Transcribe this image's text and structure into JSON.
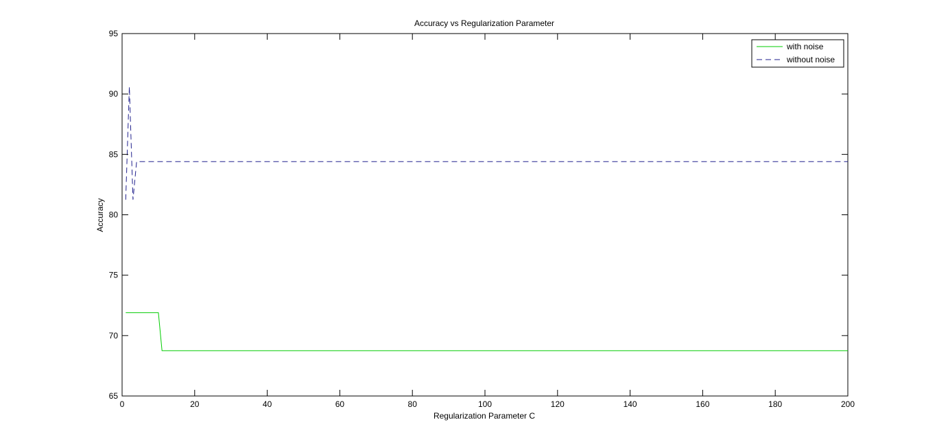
{
  "chart_data": {
    "type": "line",
    "title": "Accuracy vs Regularization Parameter",
    "xlabel": "Regularization Parameter C",
    "ylabel": "Accuracy",
    "xlim": [
      0,
      200
    ],
    "ylim": [
      65,
      95
    ],
    "xticks": [
      0,
      20,
      40,
      60,
      80,
      100,
      120,
      140,
      160,
      180,
      200
    ],
    "yticks": [
      65,
      70,
      75,
      80,
      85,
      90,
      95
    ],
    "grid": false,
    "legend_position": "top-right",
    "series": [
      {
        "name": "with noise",
        "color": "#00cc00",
        "style": "solid",
        "x": [
          1,
          2,
          3,
          4,
          5,
          6,
          7,
          8,
          9,
          10,
          11,
          20,
          40,
          60,
          80,
          100,
          120,
          140,
          160,
          180,
          200
        ],
        "y": [
          71.9,
          71.9,
          71.9,
          71.9,
          71.9,
          71.9,
          71.9,
          71.9,
          71.9,
          71.9,
          68.75,
          68.75,
          68.75,
          68.75,
          68.75,
          68.75,
          68.75,
          68.75,
          68.75,
          68.75,
          68.75
        ]
      },
      {
        "name": "without noise",
        "color": "#1f1f8c",
        "style": "dashed",
        "x": [
          1,
          2,
          3,
          4,
          5,
          10,
          20,
          40,
          60,
          80,
          100,
          120,
          140,
          160,
          180,
          200
        ],
        "y": [
          81.25,
          90.6,
          81.25,
          84.4,
          84.4,
          84.4,
          84.4,
          84.4,
          84.4,
          84.4,
          84.4,
          84.4,
          84.4,
          84.4,
          84.4,
          84.4
        ]
      }
    ]
  }
}
